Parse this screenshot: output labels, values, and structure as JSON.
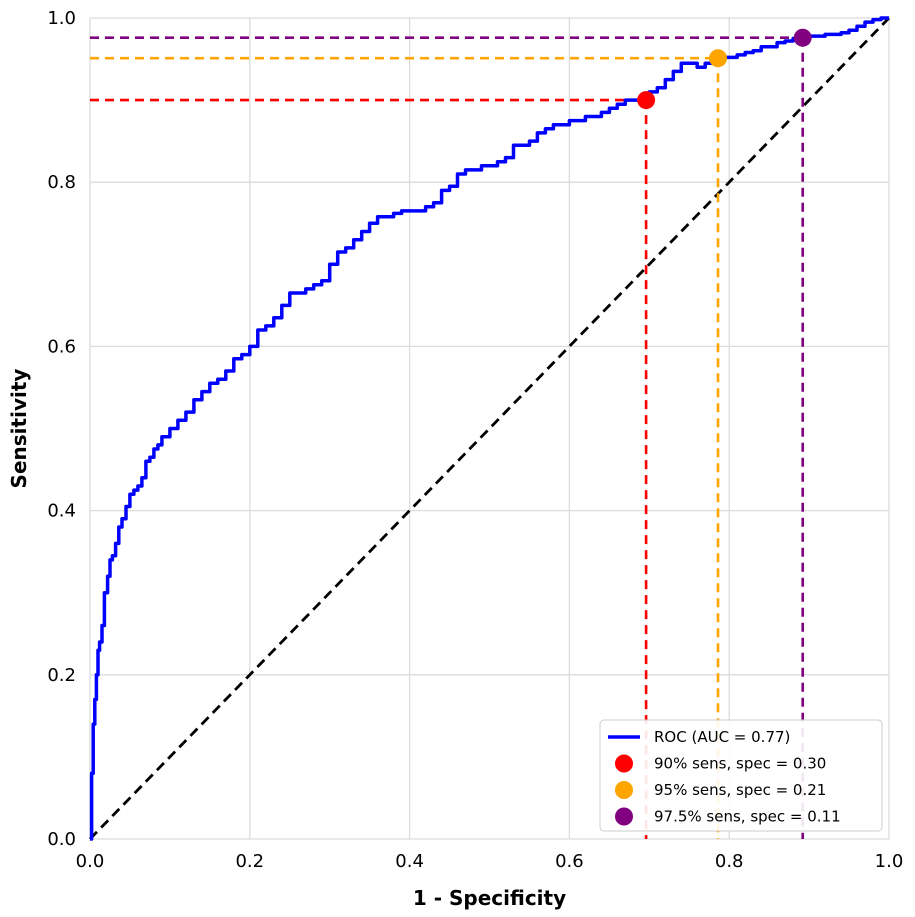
{
  "chart_data": {
    "type": "line",
    "title": "",
    "xlabel": "1 - Specificity",
    "ylabel": "Sensitivity",
    "xlim": [
      0,
      1
    ],
    "ylim": [
      0,
      1
    ],
    "xticks": [
      "0.0",
      "0.2",
      "0.4",
      "0.6",
      "0.8",
      "1.0"
    ],
    "yticks": [
      "0.0",
      "0.2",
      "0.4",
      "0.6",
      "0.8",
      "1.0"
    ],
    "grid": true,
    "legend_position": "lower-right",
    "series": [
      {
        "name": "ROC (AUC = 0.77)",
        "color": "#0000ff",
        "x": [
          0,
          0.002,
          0.004,
          0.006,
          0.008,
          0.01,
          0.012,
          0.015,
          0.018,
          0.022,
          0.025,
          0.028,
          0.032,
          0.036,
          0.04,
          0.045,
          0.05,
          0.055,
          0.06,
          0.065,
          0.07,
          0.075,
          0.08,
          0.085,
          0.09,
          0.1,
          0.11,
          0.12,
          0.13,
          0.14,
          0.15,
          0.16,
          0.17,
          0.18,
          0.19,
          0.2,
          0.21,
          0.22,
          0.23,
          0.24,
          0.25,
          0.26,
          0.27,
          0.28,
          0.29,
          0.3,
          0.31,
          0.32,
          0.33,
          0.34,
          0.35,
          0.36,
          0.37,
          0.38,
          0.39,
          0.4,
          0.41,
          0.42,
          0.43,
          0.44,
          0.45,
          0.46,
          0.47,
          0.48,
          0.49,
          0.5,
          0.51,
          0.52,
          0.53,
          0.54,
          0.55,
          0.56,
          0.57,
          0.58,
          0.59,
          0.6,
          0.61,
          0.62,
          0.63,
          0.64,
          0.65,
          0.66,
          0.67,
          0.68,
          0.69,
          0.7,
          0.71,
          0.72,
          0.73,
          0.74,
          0.75,
          0.76,
          0.77,
          0.78,
          0.79,
          0.8,
          0.81,
          0.82,
          0.83,
          0.84,
          0.85,
          0.86,
          0.87,
          0.88,
          0.89,
          0.9,
          0.91,
          0.92,
          0.93,
          0.94,
          0.95,
          0.96,
          0.97,
          0.98,
          0.99,
          1.0
        ],
        "y": [
          0,
          0.08,
          0.14,
          0.17,
          0.2,
          0.23,
          0.24,
          0.26,
          0.3,
          0.32,
          0.34,
          0.345,
          0.36,
          0.38,
          0.39,
          0.405,
          0.42,
          0.425,
          0.43,
          0.44,
          0.46,
          0.465,
          0.475,
          0.48,
          0.49,
          0.5,
          0.51,
          0.52,
          0.535,
          0.545,
          0.555,
          0.56,
          0.57,
          0.585,
          0.59,
          0.6,
          0.62,
          0.625,
          0.635,
          0.65,
          0.665,
          0.665,
          0.67,
          0.675,
          0.68,
          0.7,
          0.715,
          0.72,
          0.73,
          0.74,
          0.75,
          0.758,
          0.758,
          0.762,
          0.765,
          0.765,
          0.765,
          0.77,
          0.775,
          0.79,
          0.795,
          0.81,
          0.815,
          0.815,
          0.82,
          0.82,
          0.825,
          0.83,
          0.845,
          0.845,
          0.85,
          0.86,
          0.865,
          0.87,
          0.87,
          0.875,
          0.875,
          0.88,
          0.88,
          0.885,
          0.89,
          0.895,
          0.9,
          0.9,
          0.905,
          0.91,
          0.915,
          0.925,
          0.935,
          0.945,
          0.945,
          0.94,
          0.945,
          0.95,
          0.952,
          0.952,
          0.955,
          0.958,
          0.96,
          0.965,
          0.965,
          0.97,
          0.972,
          0.975,
          0.975,
          0.978,
          0.978,
          0.98,
          0.98,
          0.982,
          0.985,
          0.99,
          0.995,
          0.998,
          1.0,
          1.0
        ]
      }
    ],
    "reference_line": {
      "x": [
        0,
        1
      ],
      "y": [
        0,
        1
      ],
      "color": "#000000",
      "dashed": true
    },
    "operating_points": [
      {
        "name": "90% sens, spec = 0.30",
        "x": 0.696,
        "y": 0.9,
        "color": "#ff0000"
      },
      {
        "name": "95% sens, spec = 0.21",
        "x": 0.786,
        "y": 0.951,
        "color": "#ffa500"
      },
      {
        "name": "97.5% sens, spec = 0.11",
        "x": 0.892,
        "y": 0.976,
        "color": "#800080"
      }
    ]
  }
}
